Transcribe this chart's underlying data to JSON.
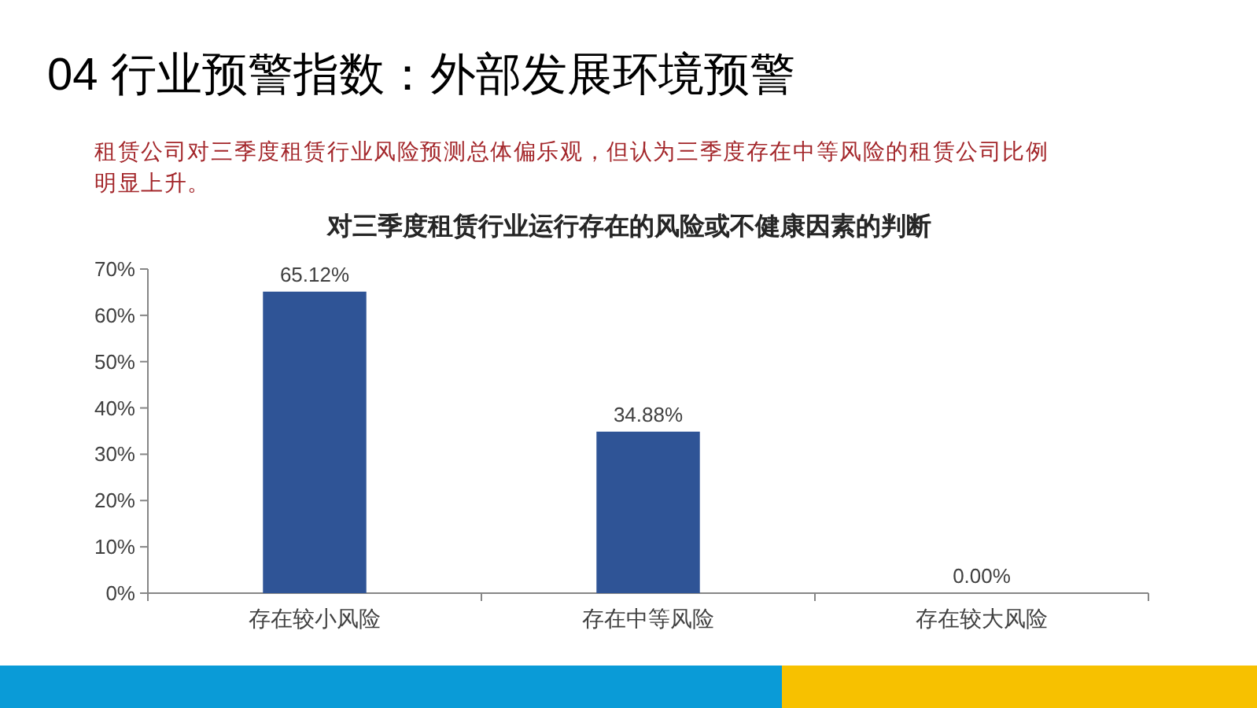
{
  "chart_data": {
    "type": "bar",
    "title": "04 行业预警指数：外部发展环境预警",
    "subtitle": "对三季度租赁行业运行存在的风险或不健康因素的判断",
    "annotations": [
      "租赁公司对三季度租赁行业风险预测总体偏乐观，但认为三季度存在中等风险的租赁公司比例明显上升。"
    ],
    "categories": [
      "存在较小风险",
      "存在中等风险",
      "存在较大风险"
    ],
    "values": [
      65.12,
      34.88,
      0.0
    ],
    "value_labels": [
      "65.12%",
      "34.88%",
      "0.00%"
    ],
    "color": "#2f5496",
    "ylim": [
      0,
      70
    ],
    "yticks": [
      {
        "value": 0,
        "label": "0%"
      },
      {
        "value": 10,
        "label": "10%"
      },
      {
        "value": 20,
        "label": "20%"
      },
      {
        "value": 30,
        "label": "30%"
      },
      {
        "value": 40,
        "label": "40%"
      },
      {
        "value": 50,
        "label": "50%"
      },
      {
        "value": 60,
        "label": "60%"
      },
      {
        "value": 70,
        "label": "70%"
      }
    ]
  }
}
